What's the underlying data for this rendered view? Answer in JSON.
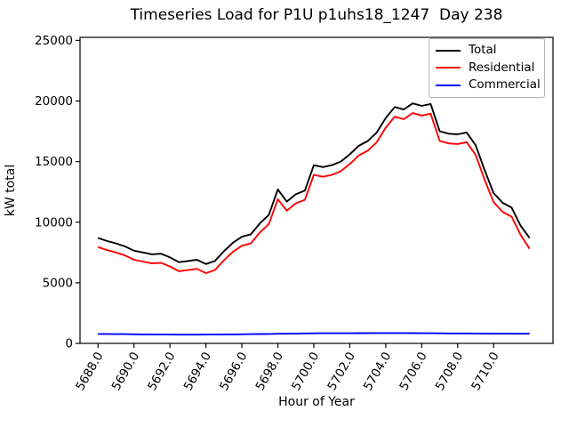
{
  "chart_data": {
    "type": "line",
    "title": "Timeseries Load for P1U p1uhs18_1247  Day 238",
    "xlabel": "Hour of Year",
    "ylabel": "kW total",
    "xlim": [
      5687.0,
      5713.3
    ],
    "ylim": [
      0,
      25250
    ],
    "grid": false,
    "legend_position": "upper right",
    "xticks": {
      "values": [
        5688,
        5690,
        5692,
        5694,
        5696,
        5698,
        5700,
        5702,
        5704,
        5706,
        5708,
        5710
      ],
      "labels": [
        "5688.0",
        "5690.0",
        "5692.0",
        "5694.0",
        "5696.0",
        "5698.0",
        "5700.0",
        "5702.0",
        "5704.0",
        "5706.0",
        "5708.0",
        "5710.0"
      ]
    },
    "yticks": {
      "values": [
        0,
        5000,
        10000,
        15000,
        20000,
        25000
      ],
      "labels": [
        "0",
        "5000",
        "10000",
        "15000",
        "20000",
        "25000"
      ]
    },
    "x": [
      5688.0,
      5688.5,
      5689.0,
      5689.5,
      5690.0,
      5690.5,
      5691.0,
      5691.5,
      5692.0,
      5692.5,
      5693.0,
      5693.5,
      5694.0,
      5694.5,
      5695.0,
      5695.5,
      5696.0,
      5696.5,
      5697.0,
      5697.5,
      5698.0,
      5698.5,
      5699.0,
      5699.5,
      5700.0,
      5700.5,
      5701.0,
      5701.5,
      5702.0,
      5702.5,
      5703.0,
      5703.5,
      5704.0,
      5704.5,
      5705.0,
      5705.5,
      5706.0,
      5706.5,
      5707.0,
      5707.5,
      5708.0,
      5708.5,
      5709.0,
      5709.5,
      5710.0,
      5710.5,
      5711.0,
      5711.5,
      5712.0
    ],
    "series": [
      {
        "name": "Total",
        "color": "#000000",
        "values": [
          8700,
          8450,
          8250,
          8000,
          7650,
          7500,
          7350,
          7400,
          7100,
          6700,
          6800,
          6900,
          6550,
          6800,
          7600,
          8300,
          8800,
          9000,
          9900,
          10600,
          12700,
          11700,
          12300,
          12600,
          14700,
          14550,
          14700,
          15000,
          15600,
          16300,
          16700,
          17400,
          18600,
          19500,
          19300,
          19800,
          19600,
          19750,
          17500,
          17300,
          17250,
          17400,
          16350,
          14300,
          12400,
          11600,
          11200,
          9700,
          8700
        ]
      },
      {
        "name": "Residential",
        "color": "#ff0000",
        "values": [
          7950,
          7700,
          7500,
          7250,
          6900,
          6750,
          6600,
          6650,
          6350,
          5950,
          6050,
          6150,
          5800,
          6050,
          6850,
          7550,
          8050,
          8250,
          9150,
          9850,
          11900,
          10950,
          11550,
          11850,
          13900,
          13750,
          13900,
          14200,
          14800,
          15500,
          15900,
          16600,
          17800,
          18700,
          18500,
          19000,
          18800,
          18950,
          16700,
          16500,
          16450,
          16600,
          15550,
          13500,
          11650,
          10850,
          10450,
          8950,
          7800
        ]
      },
      {
        "name": "Commercial",
        "color": "#0000ff",
        "values": [
          780,
          775,
          765,
          760,
          750,
          740,
          735,
          730,
          725,
          720,
          720,
          720,
          725,
          730,
          735,
          740,
          750,
          760,
          770,
          780,
          795,
          800,
          810,
          820,
          830,
          835,
          835,
          840,
          840,
          845,
          845,
          850,
          855,
          855,
          850,
          845,
          840,
          835,
          830,
          825,
          825,
          820,
          815,
          810,
          805,
          800,
          800,
          795,
          800
        ]
      }
    ]
  }
}
